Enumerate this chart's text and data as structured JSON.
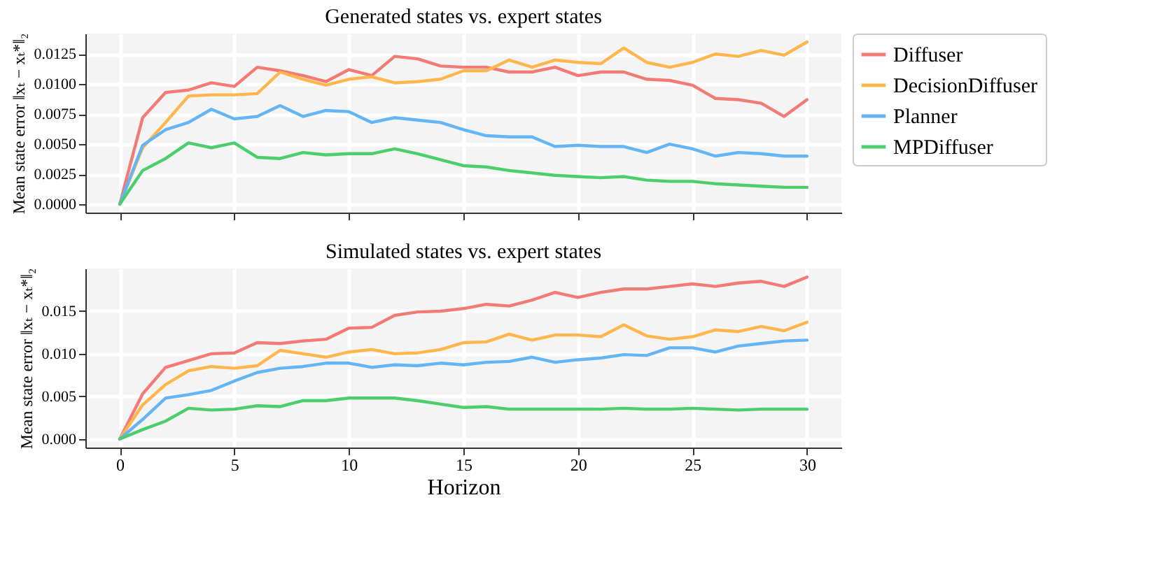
{
  "chart_data": [
    {
      "type": "line",
      "title": "Generated states vs. expert states",
      "ylabel": "Mean state error ‖xₜ − xₜ*‖₂",
      "x": [
        0,
        1,
        2,
        3,
        4,
        5,
        6,
        7,
        8,
        9,
        10,
        11,
        12,
        13,
        14,
        15,
        16,
        17,
        18,
        19,
        20,
        21,
        22,
        23,
        24,
        25,
        26,
        27,
        28,
        29,
        30
      ],
      "series": [
        {
          "name": "Diffuser",
          "color": "#f47a75",
          "values": [
            0,
            0.0072,
            0.0093,
            0.0095,
            0.0101,
            0.0098,
            0.0114,
            0.0111,
            0.0107,
            0.0102,
            0.0112,
            0.0107,
            0.0123,
            0.0121,
            0.0115,
            0.0114,
            0.0114,
            0.011,
            0.011,
            0.0114,
            0.0107,
            0.011,
            0.011,
            0.0104,
            0.0103,
            0.0099,
            0.0088,
            0.0087,
            0.0084,
            0.0073,
            0.0087
          ]
        },
        {
          "name": "DecisionDiffuser",
          "color": "#ffb74d",
          "values": [
            0,
            0.0047,
            0.0068,
            0.009,
            0.0091,
            0.0091,
            0.0092,
            0.011,
            0.0104,
            0.0099,
            0.0104,
            0.0106,
            0.0101,
            0.0102,
            0.0104,
            0.0111,
            0.0111,
            0.012,
            0.0114,
            0.012,
            0.0118,
            0.0117,
            0.013,
            0.0118,
            0.0114,
            0.0118,
            0.0125,
            0.0123,
            0.0128,
            0.0124,
            0.0135
          ]
        },
        {
          "name": "Planner",
          "color": "#64b5f6",
          "values": [
            0,
            0.0049,
            0.0062,
            0.0068,
            0.0079,
            0.0071,
            0.0073,
            0.0082,
            0.0073,
            0.0078,
            0.0077,
            0.0068,
            0.0072,
            0.007,
            0.0068,
            0.0062,
            0.0057,
            0.0056,
            0.0056,
            0.0048,
            0.0049,
            0.0048,
            0.0048,
            0.0043,
            0.005,
            0.0046,
            0.004,
            0.0043,
            0.0042,
            0.004,
            0.004
          ]
        },
        {
          "name": "MPDiffuser",
          "color": "#4cce6c",
          "values": [
            0,
            0.0028,
            0.0038,
            0.0051,
            0.0047,
            0.0051,
            0.0039,
            0.0038,
            0.0043,
            0.0041,
            0.0042,
            0.0042,
            0.0046,
            0.0042,
            0.0037,
            0.0032,
            0.0031,
            0.0028,
            0.0026,
            0.0024,
            0.0023,
            0.0022,
            0.0023,
            0.002,
            0.0019,
            0.0019,
            0.0017,
            0.0016,
            0.0015,
            0.0014,
            0.0014
          ]
        }
      ],
      "xlim": [
        -1.5,
        31.5
      ],
      "xticks": [
        0,
        5,
        10,
        15,
        20,
        25,
        30
      ],
      "ylim": [
        -0.0007,
        0.0142
      ],
      "yticks": [
        {
          "value": 0,
          "label": "0.0000"
        },
        0.0025,
        {
          "value": 0.005,
          "label": "0.0050"
        },
        0.0075,
        {
          "value": 0.01,
          "label": "0.0100"
        },
        0.0125
      ],
      "grid": true,
      "legend": "top right",
      "tick_labels": "y",
      "line_style": "solid"
    },
    {
      "type": "line",
      "title": "Simulated states vs. expert states",
      "xlabel": "Horizon",
      "ylabel": "Mean state error ‖xₜ − xₜ*‖₂",
      "x": [
        0,
        1,
        2,
        3,
        4,
        5,
        6,
        7,
        8,
        9,
        10,
        11,
        12,
        13,
        14,
        15,
        16,
        17,
        18,
        19,
        20,
        21,
        22,
        23,
        24,
        25,
        26,
        27,
        28,
        29,
        30
      ],
      "series": [
        {
          "name": "Diffuser",
          "color": "#f47a75",
          "values": [
            0,
            0.0053,
            0.0084,
            0.0092,
            0.01,
            0.0101,
            0.0113,
            0.0112,
            0.0115,
            0.0117,
            0.013,
            0.0131,
            0.0145,
            0.0149,
            0.015,
            0.0153,
            0.0158,
            0.0156,
            0.0163,
            0.0172,
            0.0166,
            0.0172,
            0.0176,
            0.0176,
            0.0179,
            0.0182,
            0.0179,
            0.0183,
            0.0185,
            0.0179,
            0.019
          ]
        },
        {
          "name": "DecisionDiffuser",
          "color": "#ffb74d",
          "values": [
            0,
            0.004,
            0.0064,
            0.008,
            0.0085,
            0.0083,
            0.0086,
            0.0104,
            0.01,
            0.0096,
            0.0102,
            0.0105,
            0.01,
            0.0101,
            0.0105,
            0.0113,
            0.0114,
            0.0123,
            0.0116,
            0.0122,
            0.0122,
            0.012,
            0.0134,
            0.0121,
            0.0117,
            0.012,
            0.0128,
            0.0126,
            0.0132,
            0.0127,
            0.0137
          ]
        },
        {
          "name": "Planner",
          "color": "#64b5f6",
          "values": [
            0,
            0.0023,
            0.0048,
            0.0052,
            0.0057,
            0.0068,
            0.0078,
            0.0083,
            0.0085,
            0.0089,
            0.0089,
            0.0084,
            0.0087,
            0.0086,
            0.0089,
            0.0087,
            0.009,
            0.0091,
            0.0096,
            0.009,
            0.0093,
            0.0095,
            0.0099,
            0.0098,
            0.0107,
            0.0107,
            0.0102,
            0.0109,
            0.0112,
            0.0115,
            0.0116
          ]
        },
        {
          "name": "MPDiffuser",
          "color": "#4cce6c",
          "values": [
            0,
            0.0011,
            0.0021,
            0.0036,
            0.0034,
            0.0035,
            0.0039,
            0.0038,
            0.0045,
            0.0045,
            0.0048,
            0.0048,
            0.0048,
            0.0045,
            0.0041,
            0.0037,
            0.0038,
            0.0035,
            0.0035,
            0.0035,
            0.0035,
            0.0035,
            0.0036,
            0.0035,
            0.0035,
            0.0036,
            0.0035,
            0.0034,
            0.0035,
            0.0035,
            0.0035
          ]
        }
      ],
      "xlim": [
        -1.5,
        31.5
      ],
      "xticks": [
        0,
        5,
        10,
        15,
        20,
        25,
        30
      ],
      "ylim": [
        -0.001,
        0.02
      ],
      "yticks": [
        {
          "value": 0,
          "label": "0.000"
        },
        0.005,
        {
          "value": 0.01,
          "label": "0.010"
        },
        0.015
      ],
      "grid": true,
      "line_style": "solid"
    }
  ]
}
